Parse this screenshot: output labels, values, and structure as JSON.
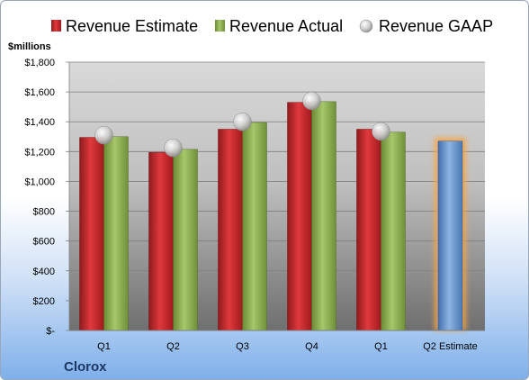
{
  "company": "Clorox",
  "chart_data": {
    "type": "bar",
    "ylabel": "$millions",
    "ylim": [
      0,
      1800
    ],
    "yticks": [
      0,
      200,
      400,
      600,
      800,
      1000,
      1200,
      1400,
      1600,
      1800
    ],
    "ytick_labels": [
      "$-",
      "$200",
      "$400",
      "$600",
      "$800",
      "$1,000",
      "$1,200",
      "$1,400",
      "$1,600",
      "$1,800"
    ],
    "categories": [
      "Q1",
      "Q2",
      "Q3",
      "Q4",
      "Q1",
      "Q2 Estimate"
    ],
    "legend_position": "top",
    "grid": true,
    "series": [
      {
        "name": "Revenue Estimate",
        "kind": "bar",
        "color": "#c0282d",
        "values": [
          1295,
          1195,
          1350,
          1530,
          1350,
          1270
        ]
      },
      {
        "name": "Revenue Actual",
        "kind": "bar",
        "color": "#8aac4f",
        "values": [
          1300,
          1215,
          1395,
          1535,
          1330,
          null
        ]
      },
      {
        "name": "Revenue GAAP",
        "kind": "marker",
        "color": "#c8c8c8",
        "values": [
          1310,
          1225,
          1400,
          1540,
          1335,
          null
        ]
      }
    ],
    "highlight": {
      "category_index": 5,
      "color": "#4f81bd",
      "glow": "#f7a546"
    }
  }
}
